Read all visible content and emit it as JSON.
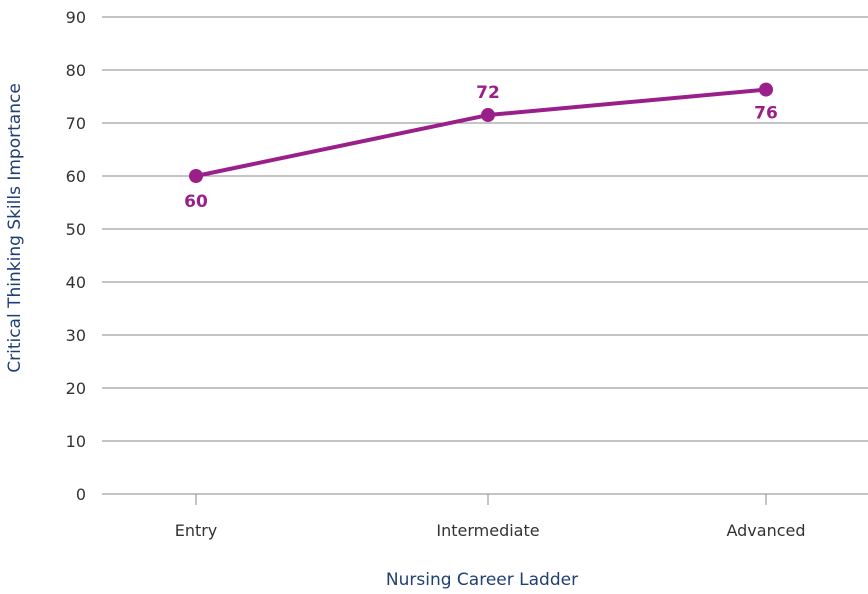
{
  "chart_data": {
    "type": "line",
    "title": "",
    "xlabel": "Nursing Career Ladder",
    "ylabel": "Critical Thinking Skills Importance",
    "categories": [
      "Entry",
      "Intermediate",
      "Advanced"
    ],
    "series": [
      {
        "values": [
          60,
          72,
          76
        ]
      }
    ],
    "point_values": [
      60,
      71.5,
      76.3
    ],
    "data_labels": [
      "60",
      "72",
      "76"
    ],
    "ylim": [
      0,
      90
    ],
    "yticks": [
      0,
      10,
      20,
      30,
      40,
      50,
      60,
      70,
      80,
      90
    ],
    "grid": true,
    "legend": "none",
    "colors": {
      "series": "#9b1f8a",
      "grid": "#8a8a8a",
      "axis_title": "#1f3f73",
      "tick_text": "#333333"
    }
  }
}
